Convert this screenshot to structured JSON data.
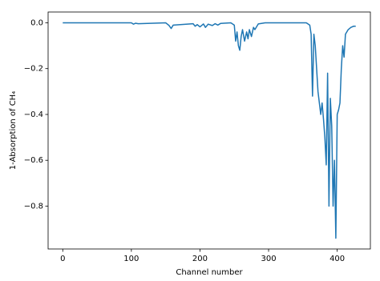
{
  "chart_data": {
    "type": "line",
    "xlabel": "Channel number",
    "ylabel": "1-Absorption of CH₄",
    "x": [
      0,
      100,
      103,
      106,
      110,
      150,
      155,
      158,
      161,
      190,
      193,
      196,
      200,
      205,
      208,
      212,
      218,
      222,
      226,
      230,
      245,
      250,
      252,
      254,
      256,
      258,
      260,
      262,
      265,
      268,
      270,
      272,
      275,
      278,
      280,
      285,
      295,
      320,
      355,
      360,
      362,
      364,
      366,
      368,
      370,
      372,
      374,
      376,
      378,
      380,
      382,
      384,
      386,
      388,
      390,
      392,
      394,
      396,
      398,
      400,
      402,
      404,
      406,
      408,
      410,
      412,
      416,
      420,
      424,
      427
    ],
    "series": [
      {
        "name": "CH4",
        "color": "#1f77b4",
        "values": [
          0,
          0,
          -0.006,
          -0.002,
          -0.004,
          0,
          -0.012,
          -0.025,
          -0.01,
          -0.004,
          -0.015,
          -0.008,
          -0.018,
          -0.005,
          -0.02,
          -0.006,
          -0.012,
          -0.004,
          -0.01,
          -0.003,
          0,
          -0.01,
          -0.08,
          -0.04,
          -0.1,
          -0.12,
          -0.06,
          -0.03,
          -0.08,
          -0.04,
          -0.07,
          -0.03,
          -0.06,
          -0.02,
          -0.03,
          -0.005,
          0,
          0,
          0,
          -0.01,
          -0.05,
          -0.32,
          -0.05,
          -0.1,
          -0.2,
          -0.3,
          -0.35,
          -0.4,
          -0.35,
          -0.42,
          -0.5,
          -0.62,
          -0.22,
          -0.8,
          -0.33,
          -0.45,
          -0.8,
          -0.6,
          -0.94,
          -0.4,
          -0.38,
          -0.35,
          -0.2,
          -0.1,
          -0.15,
          -0.05,
          -0.03,
          -0.02,
          -0.015,
          -0.015
        ]
      }
    ],
    "xlim": [
      -21.35,
      448.35
    ],
    "ylim": [
      -0.987,
      0.047
    ],
    "xticks": [
      0,
      100,
      200,
      300,
      400
    ],
    "yticks": [
      {
        "value": 0,
        "label": "0.0"
      },
      {
        "value": -0.2,
        "label": "−0.2"
      },
      {
        "value": -0.4,
        "label": "−0.4"
      },
      {
        "value": -0.6,
        "label": "−0.6"
      },
      {
        "value": -0.8,
        "label": "−0.8"
      }
    ]
  }
}
